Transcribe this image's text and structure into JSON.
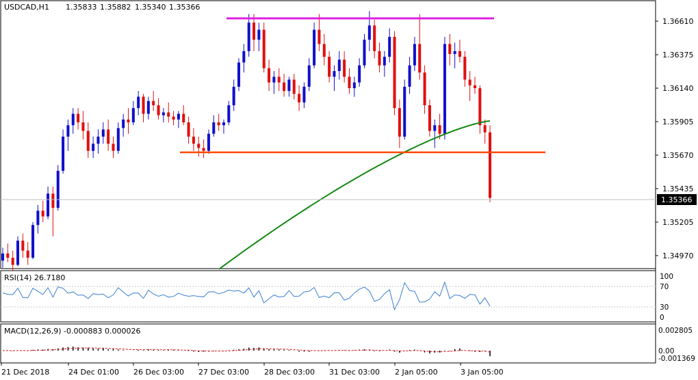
{
  "header": {
    "symbol": "USDCAD,H1",
    "open": "1.35833",
    "high": "1.35882",
    "low": "1.35340",
    "close": "1.35366"
  },
  "price_axis": {
    "ticks": [
      "1.36610",
      "1.36375",
      "1.36140",
      "1.35905",
      "1.35670",
      "1.35435",
      "1.35205",
      "1.34970"
    ],
    "current_price": "1.35366"
  },
  "time_axis": {
    "labels": [
      "21 Dec 2018",
      "24 Dec 01:00",
      "26 Dec 03:00",
      "27 Dec 03:00",
      "28 Dec 03:00",
      "31 Dec 03:00",
      "2 Jan 05:00",
      "3 Jan 05:00"
    ]
  },
  "rsi": {
    "label": "RSI(14) 26.7180",
    "levels": [
      "100",
      "70",
      "30",
      "0"
    ]
  },
  "macd": {
    "label": "MACD(12,26,9) -0.000883 0.000026",
    "levels": [
      "0.002805",
      "0.00",
      "-0.001369"
    ]
  },
  "colors": {
    "bull": "#1010cc",
    "bear": "#e01010",
    "ma": "#118811",
    "resistance": "#e020e0",
    "support": "#ff4a00",
    "rsi": "#3a7ed0",
    "macd_signal": "#e01010",
    "price_tag_bg": "#000000"
  },
  "chart_data": {
    "type": "candlestick",
    "symbol": "USDCAD",
    "timeframe": "H1",
    "y_range": [
      1.3487,
      1.3673
    ],
    "ohlc": [
      [
        1.3493,
        1.3502,
        1.3488,
        1.3498
      ],
      [
        1.3498,
        1.3505,
        1.3492,
        1.3495
      ],
      [
        1.3495,
        1.35,
        1.3486,
        1.349
      ],
      [
        1.349,
        1.351,
        1.3489,
        1.3507
      ],
      [
        1.3507,
        1.3512,
        1.3495,
        1.35
      ],
      [
        1.35,
        1.3506,
        1.349,
        1.3495
      ],
      [
        1.3495,
        1.352,
        1.3494,
        1.3518
      ],
      [
        1.3518,
        1.3532,
        1.3512,
        1.3528
      ],
      [
        1.3528,
        1.3535,
        1.352,
        1.3524
      ],
      [
        1.3524,
        1.3545,
        1.3522,
        1.354
      ],
      [
        1.354,
        1.3545,
        1.351,
        1.353
      ],
      [
        1.353,
        1.356,
        1.3528,
        1.3556
      ],
      [
        1.3556,
        1.3585,
        1.3554,
        1.358
      ],
      [
        1.358,
        1.3592,
        1.357,
        1.3588
      ],
      [
        1.3588,
        1.36,
        1.3582,
        1.3596
      ],
      [
        1.3596,
        1.36,
        1.3585,
        1.359
      ],
      [
        1.359,
        1.3598,
        1.3578,
        1.3584
      ],
      [
        1.3584,
        1.359,
        1.3565,
        1.357
      ],
      [
        1.357,
        1.358,
        1.3565,
        1.3575
      ],
      [
        1.3575,
        1.3585,
        1.3568,
        1.358
      ],
      [
        1.358,
        1.359,
        1.3575,
        1.3585
      ],
      [
        1.3585,
        1.3592,
        1.357,
        1.3575
      ],
      [
        1.3575,
        1.358,
        1.3565,
        1.357
      ],
      [
        1.357,
        1.359,
        1.3568,
        1.3586
      ],
      [
        1.3586,
        1.3596,
        1.358,
        1.3592
      ],
      [
        1.3592,
        1.36,
        1.3582,
        1.359
      ],
      [
        1.359,
        1.3605,
        1.3588,
        1.36
      ],
      [
        1.36,
        1.3612,
        1.3595,
        1.3608
      ],
      [
        1.3608,
        1.361,
        1.359,
        1.3596
      ],
      [
        1.3596,
        1.3608,
        1.3592,
        1.3605
      ],
      [
        1.3605,
        1.3612,
        1.3598,
        1.3602
      ],
      [
        1.3602,
        1.3607,
        1.3592,
        1.3595
      ],
      [
        1.3595,
        1.36,
        1.359,
        1.3597
      ],
      [
        1.3597,
        1.3604,
        1.359,
        1.3594
      ],
      [
        1.3594,
        1.3598,
        1.3588,
        1.3592
      ],
      [
        1.3592,
        1.3598,
        1.3586,
        1.3596
      ],
      [
        1.3596,
        1.3602,
        1.3588,
        1.359
      ],
      [
        1.359,
        1.3594,
        1.3575,
        1.358
      ],
      [
        1.358,
        1.3586,
        1.357,
        1.3575
      ],
      [
        1.3575,
        1.358,
        1.3566,
        1.3572
      ],
      [
        1.3572,
        1.3578,
        1.3565,
        1.357
      ],
      [
        1.357,
        1.3585,
        1.3568,
        1.3582
      ],
      [
        1.3582,
        1.3595,
        1.358,
        1.359
      ],
      [
        1.359,
        1.3596,
        1.3584,
        1.3588
      ],
      [
        1.3588,
        1.3592,
        1.3582,
        1.359
      ],
      [
        1.359,
        1.3605,
        1.3588,
        1.3602
      ],
      [
        1.3602,
        1.362,
        1.3598,
        1.3615
      ],
      [
        1.3615,
        1.3635,
        1.3612,
        1.3632
      ],
      [
        1.3632,
        1.3645,
        1.3625,
        1.364
      ],
      [
        1.364,
        1.3666,
        1.3636,
        1.366
      ],
      [
        1.366,
        1.3666,
        1.364,
        1.3648
      ],
      [
        1.3648,
        1.366,
        1.364,
        1.3655
      ],
      [
        1.3655,
        1.366,
        1.3625,
        1.3628
      ],
      [
        1.3628,
        1.3634,
        1.3612,
        1.3618
      ],
      [
        1.3618,
        1.3626,
        1.361,
        1.3622
      ],
      [
        1.3622,
        1.3628,
        1.3612,
        1.3618
      ],
      [
        1.3618,
        1.3624,
        1.3608,
        1.3612
      ],
      [
        1.3612,
        1.3622,
        1.3608,
        1.362
      ],
      [
        1.362,
        1.3624,
        1.3606,
        1.361
      ],
      [
        1.361,
        1.3616,
        1.3598,
        1.3604
      ],
      [
        1.3604,
        1.3618,
        1.36,
        1.3615
      ],
      [
        1.3615,
        1.3635,
        1.3612,
        1.363
      ],
      [
        1.363,
        1.366,
        1.3628,
        1.3655
      ],
      [
        1.3655,
        1.3666,
        1.364,
        1.3645
      ],
      [
        1.3645,
        1.3652,
        1.363,
        1.3636
      ],
      [
        1.3636,
        1.364,
        1.3618,
        1.3622
      ],
      [
        1.3622,
        1.363,
        1.3612,
        1.3626
      ],
      [
        1.3626,
        1.364,
        1.362,
        1.3634
      ],
      [
        1.3634,
        1.364,
        1.3618,
        1.3622
      ],
      [
        1.3622,
        1.3628,
        1.361,
        1.3614
      ],
      [
        1.3614,
        1.3622,
        1.3608,
        1.3618
      ],
      [
        1.3618,
        1.3635,
        1.3615,
        1.363
      ],
      [
        1.363,
        1.3652,
        1.3628,
        1.3648
      ],
      [
        1.3648,
        1.3668,
        1.364,
        1.3658
      ],
      [
        1.3658,
        1.3662,
        1.3635,
        1.364
      ],
      [
        1.364,
        1.3646,
        1.3625,
        1.363
      ],
      [
        1.363,
        1.364,
        1.3622,
        1.3636
      ],
      [
        1.3636,
        1.3656,
        1.3632,
        1.365
      ],
      [
        1.365,
        1.3654,
        1.3595,
        1.36
      ],
      [
        1.36,
        1.3606,
        1.3572,
        1.358
      ],
      [
        1.358,
        1.362,
        1.3578,
        1.3615
      ],
      [
        1.3615,
        1.3636,
        1.361,
        1.363
      ],
      [
        1.363,
        1.365,
        1.3626,
        1.3645
      ],
      [
        1.3645,
        1.3666,
        1.362,
        1.3625
      ],
      [
        1.3625,
        1.363,
        1.3596,
        1.3602
      ],
      [
        1.3602,
        1.3606,
        1.358,
        1.3584
      ],
      [
        1.3584,
        1.3592,
        1.3572,
        1.3588
      ],
      [
        1.3588,
        1.3596,
        1.3578,
        1.3582
      ],
      [
        1.3582,
        1.365,
        1.3578,
        1.3645
      ],
      [
        1.3645,
        1.3652,
        1.363,
        1.3638
      ],
      [
        1.3638,
        1.3646,
        1.3628,
        1.364
      ],
      [
        1.364,
        1.3648,
        1.3632,
        1.3636
      ],
      [
        1.3636,
        1.364,
        1.3615,
        1.362
      ],
      [
        1.362,
        1.3626,
        1.3605,
        1.3616
      ],
      [
        1.3616,
        1.3622,
        1.361,
        1.3614
      ],
      [
        1.3614,
        1.3616,
        1.3582,
        1.3588
      ],
      [
        1.3588,
        1.3592,
        1.3575,
        1.3583
      ],
      [
        1.3583,
        1.3588,
        1.3534,
        1.3537
      ]
    ],
    "ma200": {
      "from": 1.3487,
      "to": 1.3591
    },
    "resistance": 1.3663,
    "support": 1.3569,
    "rsi": {
      "range": [
        0,
        100
      ],
      "last": 26.718
    },
    "macd": {
      "range": [
        -0.001369,
        0.002805
      ],
      "main_last": -0.000883,
      "signal_last": 2.6e-05
    }
  }
}
